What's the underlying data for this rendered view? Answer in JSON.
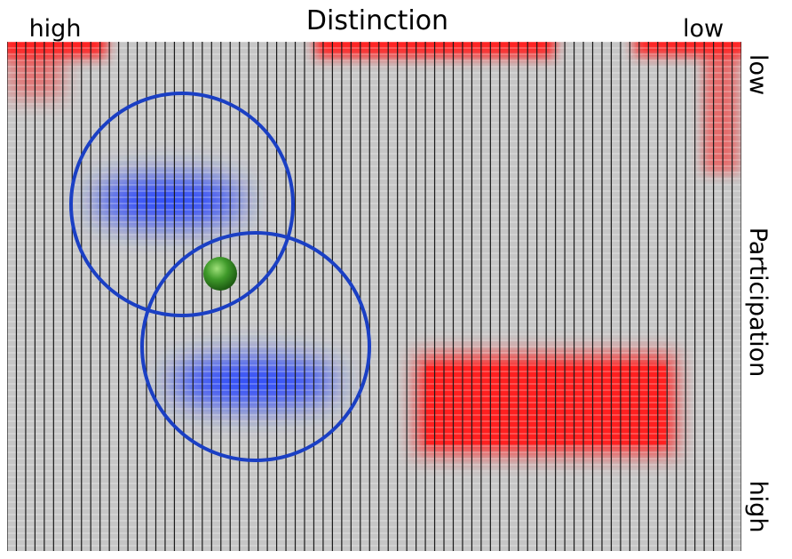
{
  "top_axis": {
    "title": "Distinction",
    "left": "high",
    "right": "low"
  },
  "right_axis": {
    "title": "Participation",
    "top": "low",
    "bottom": "high"
  }
}
